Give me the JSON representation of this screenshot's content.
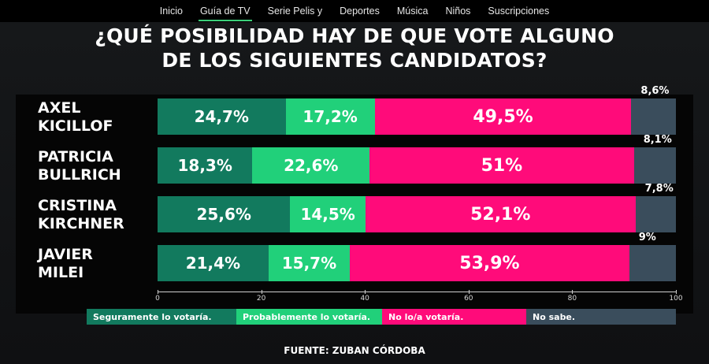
{
  "nav": {
    "items": [
      "Inicio",
      "Guía de TV",
      "Serie Pelis y",
      "Deportes",
      "Música",
      "Niños",
      "Suscripciones"
    ],
    "active": "Guía de TV"
  },
  "chart_data": {
    "type": "bar",
    "stacked": true,
    "orientation": "horizontal",
    "title_lines": [
      "¿QUÉ POSIBILIDAD HAY DE QUE VOTE ALGUNO",
      "DE LOS SIGUIENTES CANDIDATOS?"
    ],
    "categories": [
      [
        "AXEL",
        "KICILLOF"
      ],
      [
        "PATRICIA",
        "BULLRICH"
      ],
      [
        "CRISTINA",
        "KIRCHNER"
      ],
      [
        "JAVIER",
        "MILEI"
      ]
    ],
    "series": [
      {
        "name": "Seguramente lo votaría.",
        "color": "#127a5e",
        "values": [
          24.7,
          18.3,
          25.6,
          21.4
        ],
        "labels": [
          "24,7%",
          "18,3%",
          "25,6%",
          "21,4%"
        ]
      },
      {
        "name": "Probablemente lo votaría.",
        "color": "#21d07a",
        "values": [
          17.2,
          22.6,
          14.5,
          15.7
        ],
        "labels": [
          "17,2%",
          "22,6%",
          "14,5%",
          "15,7%"
        ]
      },
      {
        "name": "No lo/a votaría.",
        "color": "#ff0b7a",
        "values": [
          49.5,
          51,
          52.1,
          53.9
        ],
        "labels": [
          "49,5%",
          "51%",
          "52,1%",
          "53,9%"
        ]
      },
      {
        "name": "No sabe.",
        "color": "#3a4d5c",
        "values": [
          8.6,
          8.1,
          7.8,
          9
        ],
        "labels": [
          "8,6%",
          "8,1%",
          "7,8%",
          "9%"
        ]
      }
    ],
    "x_ticks": [
      0,
      20,
      40,
      60,
      80,
      100
    ],
    "xlim": [
      0,
      100
    ],
    "legend_position": "bottom",
    "source": "FUENTE: ZUBAN CÓRDOBA"
  }
}
